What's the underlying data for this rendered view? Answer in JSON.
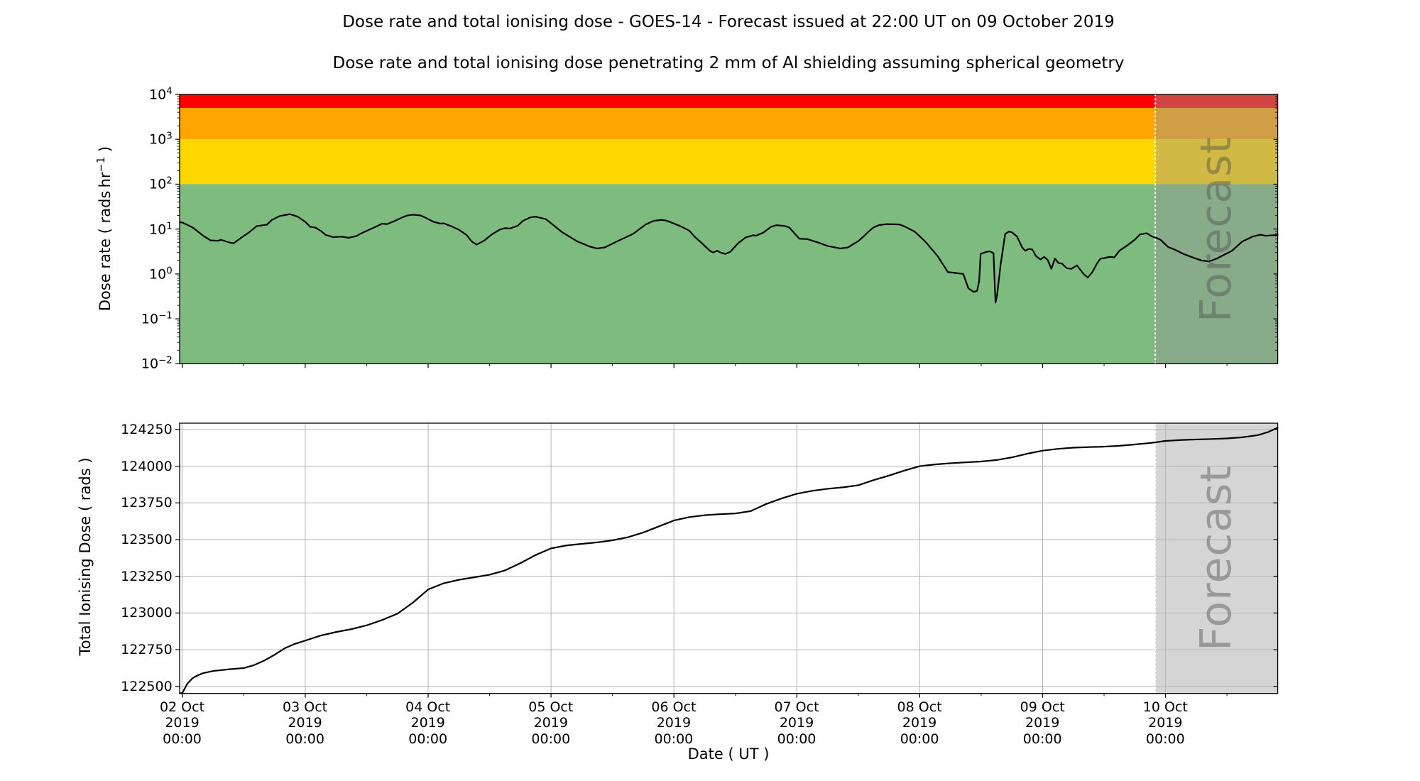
{
  "figure": {
    "title": "Dose rate and total ionising dose - GOES-14 - Forecast issued at 22:00 UT on 09 October 2019",
    "subtitle": "Dose rate and total ionising dose penetrating 2 mm of Al shielding assuming spherical geometry"
  },
  "colors": {
    "band_red": "#ff0000",
    "band_orange": "#ffa500",
    "band_yellow": "#ffd700",
    "band_green": "#7dbc7e",
    "forecast_overlay_top": "rgba(150,150,150,0.45)",
    "forecast_overlay_bottom": "rgba(150,150,150,0.40)",
    "forecast_text": "rgba(80,80,80,0.45)",
    "gridline": "#b3b3b3",
    "curve": "#000000",
    "divider_line": "#ffffff",
    "axis": "#000000"
  },
  "forecast": {
    "label": "Forecast",
    "start_hours": 190,
    "start_time": "09 Oct 2019 22:00 UT",
    "end_time": "10 Oct 2019 22:00 UT"
  },
  "x_axis": {
    "label": "Date ( UT )",
    "tick_hours": [
      0,
      24,
      48,
      72,
      96,
      120,
      144,
      168,
      192
    ],
    "minor_tick_hours": [
      12,
      36,
      60,
      84,
      108,
      132,
      156,
      180,
      204
    ],
    "tick_labels": [
      [
        "02 Oct",
        "2019",
        "00:00"
      ],
      [
        "03 Oct",
        "2019",
        "00:00"
      ],
      [
        "04 Oct",
        "2019",
        "00:00"
      ],
      [
        "05 Oct",
        "2019",
        "00:00"
      ],
      [
        "06 Oct",
        "2019",
        "00:00"
      ],
      [
        "07 Oct",
        "2019",
        "00:00"
      ],
      [
        "08 Oct",
        "2019",
        "00:00"
      ],
      [
        "09 Oct",
        "2019",
        "00:00"
      ],
      [
        "10 Oct",
        "2019",
        "00:00"
      ]
    ],
    "range_hours": [
      -0.53,
      213.93
    ]
  },
  "top_chart": {
    "ylabel": {
      "prefix": "Dose rate ( rads hr",
      "sup": "−1",
      "suffix": " )"
    },
    "scale": "log",
    "ylim_exponents": [
      -2,
      4
    ],
    "ytick_exponents": [
      4,
      3,
      2,
      1,
      0,
      -1,
      -2
    ],
    "bands": [
      {
        "name": "red-alert-band",
        "from": 5000,
        "to": 10000,
        "colorKey": "band_red"
      },
      {
        "name": "orange-alert-band",
        "from": 1000,
        "to": 5000,
        "colorKey": "band_orange"
      },
      {
        "name": "yellow-alert-band",
        "from": 100,
        "to": 1000,
        "colorKey": "band_yellow"
      },
      {
        "name": "green-safe-band",
        "from": 0.01,
        "to": 100,
        "colorKey": "band_green"
      }
    ]
  },
  "bottom_chart": {
    "ylabel": {
      "prefix": "Total Ionising Dose ( rads )",
      "sup": "",
      "suffix": ""
    },
    "scale": "linear",
    "ylim": [
      122452,
      124293
    ],
    "ytick_values": [
      122500,
      122750,
      123000,
      123250,
      123500,
      123750,
      124000,
      124250
    ],
    "grid": true
  },
  "chart_data": [
    {
      "type": "line",
      "name": "dose_rate",
      "title": "Dose rate ( rads/hr ) vs time",
      "x_unit": "hours since 02 Oct 2019 00:00 UT",
      "ylabel": "Dose rate ( rads hr^-1 )",
      "ylim": [
        0.01,
        10000
      ],
      "forecast_from_hours": 190,
      "points": [
        [
          -0.5,
          14.2
        ],
        [
          0,
          14
        ],
        [
          2,
          10.9
        ],
        [
          4,
          7.2
        ],
        [
          5.5,
          5.6
        ],
        [
          7,
          5.5
        ],
        [
          7.5,
          5.8
        ],
        [
          9,
          5.1
        ],
        [
          10,
          4.8
        ],
        [
          11.5,
          6.4
        ],
        [
          13,
          8.4
        ],
        [
          14.5,
          11.6
        ],
        [
          15.5,
          12.1
        ],
        [
          16.5,
          12.5
        ],
        [
          17.5,
          16
        ],
        [
          19,
          19.5
        ],
        [
          21,
          21.5
        ],
        [
          22.5,
          19
        ],
        [
          24,
          14.5
        ],
        [
          25,
          11.2
        ],
        [
          26,
          10.8
        ],
        [
          27,
          9.2
        ],
        [
          28,
          7.4
        ],
        [
          29.5,
          6.6
        ],
        [
          31,
          6.8
        ],
        [
          32.5,
          6.4
        ],
        [
          34,
          7
        ],
        [
          35,
          8.1
        ],
        [
          36.5,
          9.7
        ],
        [
          38,
          11.6
        ],
        [
          39,
          13.2
        ],
        [
          40,
          12.9
        ],
        [
          41.5,
          15.2
        ],
        [
          43,
          18.3
        ],
        [
          44,
          20.2
        ],
        [
          45,
          20.9
        ],
        [
          46.5,
          20.2
        ],
        [
          47.5,
          17.9
        ],
        [
          49,
          14.6
        ],
        [
          50.5,
          13.2
        ],
        [
          51,
          13.5
        ],
        [
          52.5,
          11.6
        ],
        [
          54,
          9.7
        ],
        [
          55.5,
          7.4
        ],
        [
          56.5,
          5.3
        ],
        [
          57.5,
          4.5
        ],
        [
          59,
          5.6
        ],
        [
          60.5,
          7.7
        ],
        [
          62,
          9.7
        ],
        [
          63,
          10.5
        ],
        [
          64,
          10.3
        ],
        [
          65.5,
          11.9
        ],
        [
          66.5,
          15.2
        ],
        [
          68,
          18.3
        ],
        [
          69,
          18.9
        ],
        [
          69.5,
          18.3
        ],
        [
          71,
          16.6
        ],
        [
          72,
          13.5
        ],
        [
          74,
          8.8
        ],
        [
          77,
          5.4
        ],
        [
          79.5,
          4.1
        ],
        [
          81,
          3.7
        ],
        [
          82.5,
          3.9
        ],
        [
          85,
          5.4
        ],
        [
          88,
          7.8
        ],
        [
          90.5,
          12.7
        ],
        [
          92,
          15.2
        ],
        [
          93.5,
          16
        ],
        [
          94.5,
          15.5
        ],
        [
          96,
          13.3
        ],
        [
          97.5,
          11.3
        ],
        [
          99,
          9.2
        ],
        [
          100,
          6.8
        ],
        [
          101.5,
          4.8
        ],
        [
          103,
          3.3
        ],
        [
          103.7,
          3
        ],
        [
          104.4,
          3.3
        ],
        [
          105.1,
          3
        ],
        [
          106,
          2.8
        ],
        [
          107,
          3.1
        ],
        [
          108.5,
          4.8
        ],
        [
          110,
          6.5
        ],
        [
          111.5,
          7.3
        ],
        [
          112,
          7.1
        ],
        [
          113.5,
          8.4
        ],
        [
          115,
          11.3
        ],
        [
          116,
          12.2
        ],
        [
          117.5,
          11.8
        ],
        [
          118.5,
          10.9
        ],
        [
          120.5,
          6.1
        ],
        [
          122,
          6
        ],
        [
          124,
          5.1
        ],
        [
          126,
          4.2
        ],
        [
          128.5,
          3.7
        ],
        [
          130,
          3.9
        ],
        [
          131,
          4.6
        ],
        [
          132,
          5.4
        ],
        [
          133,
          6.8
        ],
        [
          134,
          8.8
        ],
        [
          135,
          10.9
        ],
        [
          136,
          12.2
        ],
        [
          137.5,
          12.9
        ],
        [
          140,
          12.7
        ],
        [
          141,
          11.5
        ],
        [
          143,
          8.8
        ],
        [
          145,
          5.4
        ],
        [
          147.5,
          2.5
        ],
        [
          149.5,
          1.1
        ],
        [
          151,
          1.05
        ],
        [
          152.5,
          1
        ],
        [
          153.5,
          0.48
        ],
        [
          154.5,
          0.4
        ],
        [
          155.2,
          0.42
        ],
        [
          155.6,
          0.69
        ],
        [
          155.9,
          2.8
        ],
        [
          157,
          3.1
        ],
        [
          157.7,
          3.2
        ],
        [
          158.4,
          2.9
        ],
        [
          158.8,
          0.23
        ],
        [
          159.1,
          0.33
        ],
        [
          159.8,
          1.65
        ],
        [
          160.7,
          7.8
        ],
        [
          161.4,
          8.8
        ],
        [
          162,
          8.5
        ],
        [
          163,
          6.8
        ],
        [
          164,
          3.9
        ],
        [
          164.6,
          3.3
        ],
        [
          165.3,
          3.6
        ],
        [
          166,
          3.5
        ],
        [
          166.7,
          2.5
        ],
        [
          167.6,
          2.1
        ],
        [
          168.3,
          2.4
        ],
        [
          169,
          2.05
        ],
        [
          169.7,
          1.3
        ],
        [
          170.4,
          2.2
        ],
        [
          171.1,
          1.75
        ],
        [
          171.8,
          1.7
        ],
        [
          172.7,
          1.35
        ],
        [
          173.6,
          1.3
        ],
        [
          174.7,
          1.55
        ],
        [
          176,
          1
        ],
        [
          176.8,
          0.83
        ],
        [
          177.7,
          1.1
        ],
        [
          178.6,
          1.7
        ],
        [
          179.3,
          2.2
        ],
        [
          180,
          2.25
        ],
        [
          181,
          2.4
        ],
        [
          182,
          2.35
        ],
        [
          183,
          3.3
        ],
        [
          184.5,
          4.3
        ],
        [
          186,
          5.8
        ],
        [
          187,
          7.6
        ],
        [
          188.3,
          8.1
        ],
        [
          189.4,
          6.8
        ],
        [
          190,
          6.5
        ],
        [
          191,
          5.8
        ],
        [
          192.5,
          4
        ],
        [
          194,
          3.4
        ],
        [
          195.5,
          2.8
        ],
        [
          197,
          2.4
        ],
        [
          199,
          2
        ],
        [
          200.5,
          1.9
        ],
        [
          202,
          2.2
        ],
        [
          203.5,
          2.7
        ],
        [
          205,
          3.3
        ],
        [
          207,
          5.3
        ],
        [
          209,
          6.8
        ],
        [
          210.5,
          7.5
        ],
        [
          211.5,
          7.1
        ],
        [
          213,
          7.3
        ],
        [
          213.9,
          7.4
        ]
      ]
    },
    {
      "type": "line",
      "name": "total_ionising_dose",
      "title": "Total Ionising Dose ( rads ) vs time",
      "x_unit": "hours since 02 Oct 2019 00:00 UT",
      "ylabel": "Total Ionising Dose ( rads )",
      "ylim": [
        122452,
        124293
      ],
      "forecast_from_hours": 190,
      "points": [
        [
          -0.5,
          122453
        ],
        [
          0,
          122455
        ],
        [
          1,
          122520
        ],
        [
          2,
          122556
        ],
        [
          3,
          122575
        ],
        [
          4,
          122590
        ],
        [
          6,
          122605
        ],
        [
          9,
          122616
        ],
        [
          12,
          122625
        ],
        [
          14,
          122645
        ],
        [
          16,
          122676
        ],
        [
          18,
          122715
        ],
        [
          20,
          122760
        ],
        [
          22,
          122790
        ],
        [
          24,
          122812
        ],
        [
          27,
          122846
        ],
        [
          30,
          122870
        ],
        [
          33,
          122890
        ],
        [
          36,
          122916
        ],
        [
          39,
          122952
        ],
        [
          42,
          122995
        ],
        [
          45,
          123070
        ],
        [
          48,
          123160
        ],
        [
          51,
          123202
        ],
        [
          54,
          123226
        ],
        [
          57,
          123243
        ],
        [
          60,
          123261
        ],
        [
          63,
          123290
        ],
        [
          66,
          123339
        ],
        [
          69,
          123395
        ],
        [
          72,
          123440
        ],
        [
          75,
          123460
        ],
        [
          78,
          123471
        ],
        [
          81,
          123481
        ],
        [
          84,
          123495
        ],
        [
          87,
          123516
        ],
        [
          90,
          123548
        ],
        [
          93,
          123589
        ],
        [
          96,
          123630
        ],
        [
          99,
          123653
        ],
        [
          102,
          123666
        ],
        [
          105,
          123673
        ],
        [
          108,
          123678
        ],
        [
          111,
          123694
        ],
        [
          114,
          123742
        ],
        [
          117,
          123780
        ],
        [
          120,
          123812
        ],
        [
          123,
          123832
        ],
        [
          126,
          123846
        ],
        [
          129,
          123856
        ],
        [
          132,
          123870
        ],
        [
          135,
          123905
        ],
        [
          138,
          123936
        ],
        [
          141,
          123970
        ],
        [
          144,
          124000
        ],
        [
          147,
          124012
        ],
        [
          150,
          124020
        ],
        [
          153,
          124026
        ],
        [
          156,
          124032
        ],
        [
          159,
          124042
        ],
        [
          162,
          124060
        ],
        [
          165,
          124085
        ],
        [
          168,
          124106
        ],
        [
          171,
          124118
        ],
        [
          174,
          124126
        ],
        [
          177,
          124130
        ],
        [
          180,
          124133
        ],
        [
          183,
          124139
        ],
        [
          186,
          124148
        ],
        [
          189,
          124158
        ],
        [
          190,
          124162
        ],
        [
          192,
          124172
        ],
        [
          195,
          124178
        ],
        [
          198,
          124182
        ],
        [
          201,
          124185
        ],
        [
          204,
          124189
        ],
        [
          207,
          124197
        ],
        [
          210,
          124211
        ],
        [
          212,
          124232
        ],
        [
          213.9,
          124262
        ]
      ]
    }
  ]
}
